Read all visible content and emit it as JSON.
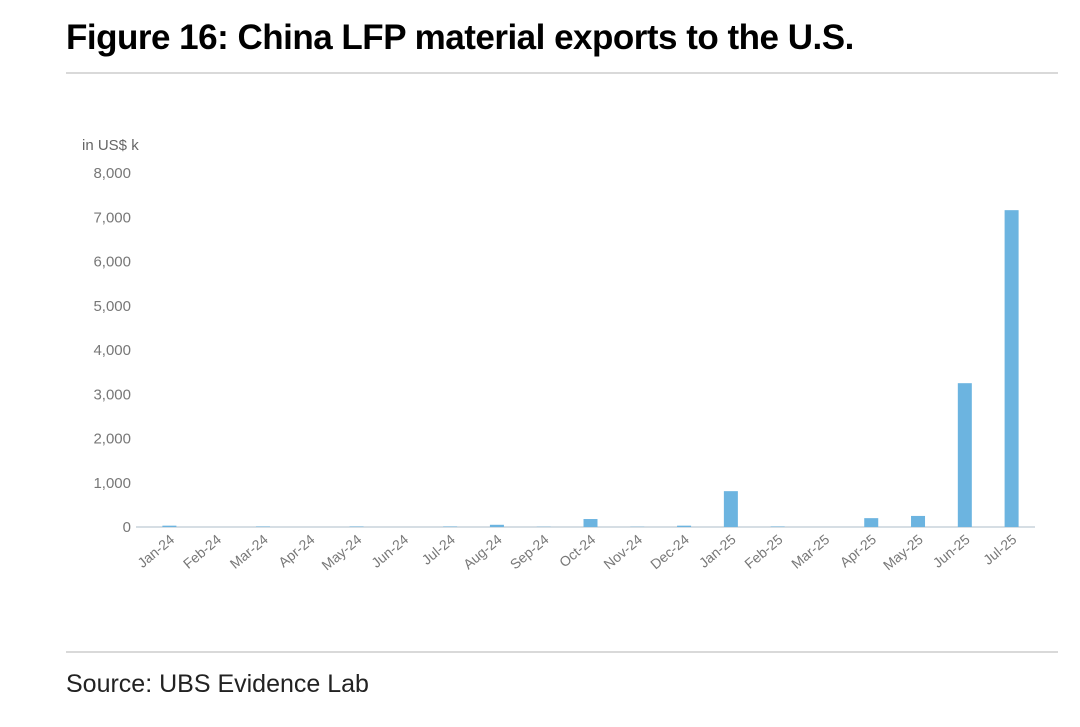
{
  "title": "Figure 16: China LFP material exports to the U.S.",
  "source": "Source: UBS Evidence Lab",
  "chart_data": {
    "type": "bar",
    "title": "Figure 16: China LFP material exports to the U.S.",
    "ylabel": "in US$ k",
    "xlabel": "",
    "ylim": [
      0,
      8000
    ],
    "yticks": [
      0,
      1000,
      2000,
      3000,
      4000,
      5000,
      6000,
      7000,
      8000
    ],
    "ytick_labels": [
      "0",
      "1,000",
      "2,000",
      "3,000",
      "4,000",
      "5,000",
      "6,000",
      "7,000",
      "8,000"
    ],
    "grid": false,
    "bar_color": "#6CB4E0",
    "categories": [
      "Jan-24",
      "Feb-24",
      "Mar-24",
      "Apr-24",
      "May-24",
      "Jun-24",
      "Jul-24",
      "Aug-24",
      "Sep-24",
      "Oct-24",
      "Nov-24",
      "Dec-24",
      "Jan-25",
      "Feb-25",
      "Mar-25",
      "Apr-25",
      "May-25",
      "Jun-25",
      "Jul-25"
    ],
    "values": [
      30,
      0,
      10,
      0,
      10,
      0,
      10,
      50,
      5,
      180,
      5,
      30,
      810,
      10,
      0,
      200,
      250,
      3250,
      7160
    ]
  }
}
